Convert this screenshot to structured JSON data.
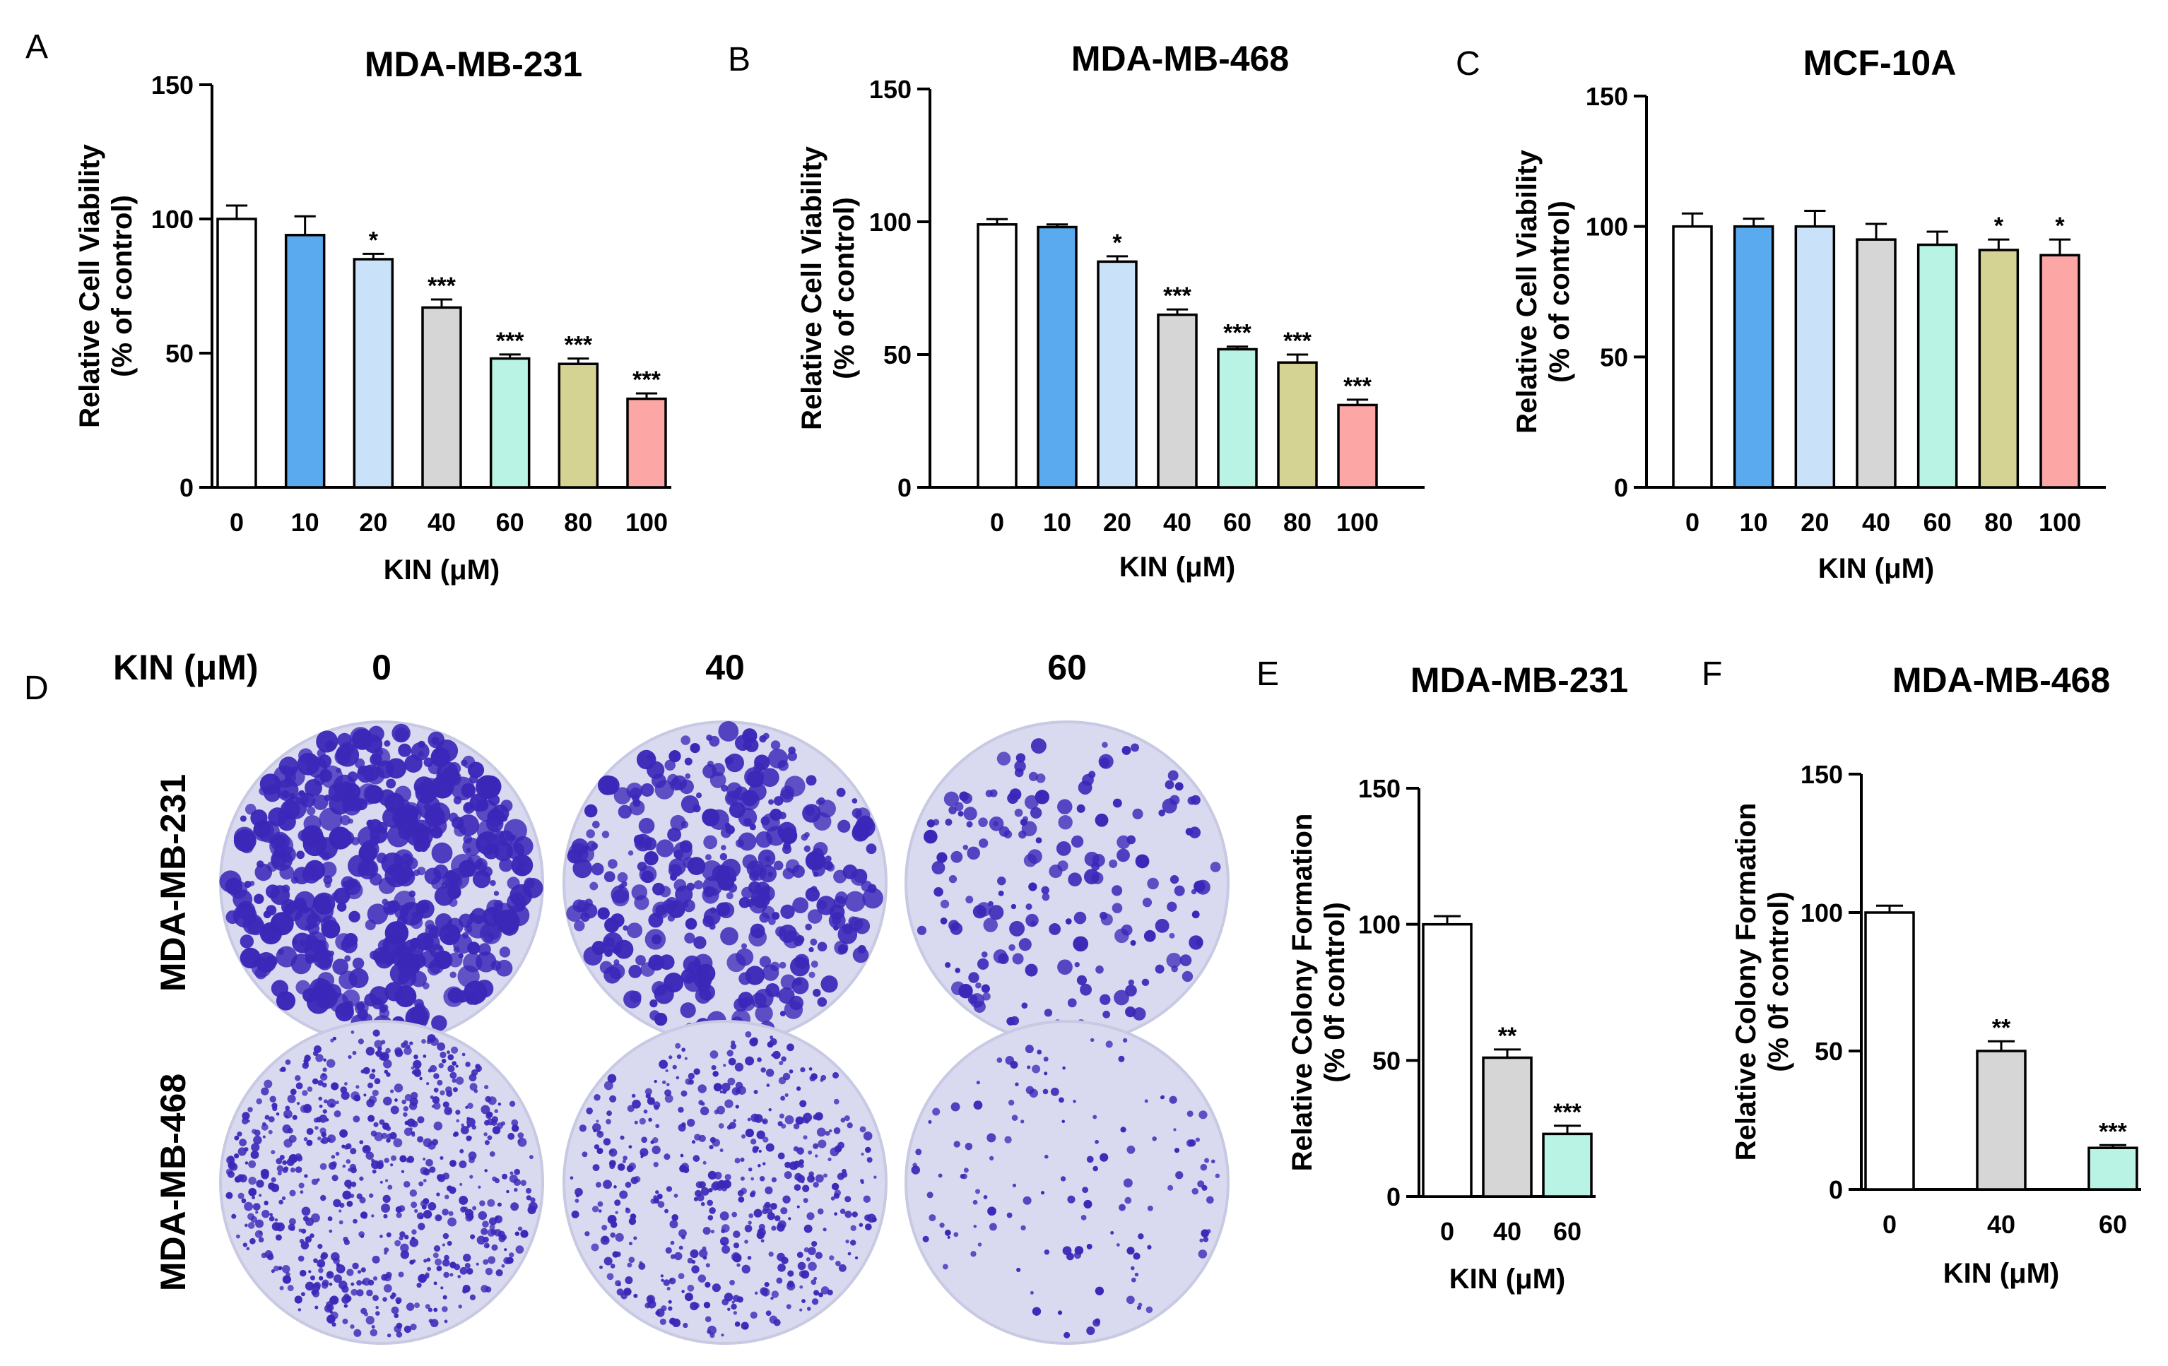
{
  "chart_data": [
    {
      "panel": "A",
      "type": "bar",
      "title": "MDA-MB-231",
      "xlabel": "KIN (μM)",
      "ylabel_lines": [
        "Relative Cell Viability",
        "(% of control)"
      ],
      "categories": [
        "0",
        "10",
        "20",
        "40",
        "60",
        "80",
        "100"
      ],
      "values": [
        100,
        94,
        85,
        67,
        48,
        46,
        33
      ],
      "errors": [
        5,
        7,
        2,
        3,
        1.5,
        2,
        2
      ],
      "significance": [
        "",
        "",
        "*",
        "***",
        "***",
        "***",
        "***"
      ],
      "colors": [
        "#ffffff",
        "#5aaaf0",
        "#c9e1f9",
        "#d6d6d6",
        "#b8f3e3",
        "#d5d393",
        "#fda6a6"
      ],
      "ylim": [
        0,
        150
      ],
      "yticks": [
        0,
        50,
        100,
        150
      ]
    },
    {
      "panel": "B",
      "type": "bar",
      "title": "MDA-MB-468",
      "xlabel": "KIN (μM)",
      "ylabel_lines": [
        "Relative Cell Viability",
        "(% of control)"
      ],
      "categories": [
        "0",
        "10",
        "20",
        "40",
        "60",
        "80",
        "100"
      ],
      "values": [
        99,
        98,
        85,
        65,
        52,
        47,
        31
      ],
      "errors": [
        2,
        1,
        2,
        2,
        1,
        3,
        2
      ],
      "significance": [
        "",
        "",
        "*",
        "***",
        "***",
        "***",
        "***"
      ],
      "colors": [
        "#ffffff",
        "#5aaaf0",
        "#c9e1f9",
        "#d6d6d6",
        "#b8f3e3",
        "#d5d393",
        "#fda6a6"
      ],
      "ylim": [
        0,
        150
      ],
      "yticks": [
        0,
        50,
        100,
        150
      ]
    },
    {
      "panel": "C",
      "type": "bar",
      "title": "MCF-10A",
      "xlabel": "KIN (μM)",
      "ylabel_lines": [
        "Relative Cell Viability",
        "(% of control)"
      ],
      "categories": [
        "0",
        "10",
        "20",
        "40",
        "60",
        "80",
        "100"
      ],
      "values": [
        100,
        100,
        100,
        95,
        93,
        91,
        89
      ],
      "errors": [
        5,
        3,
        6,
        6,
        5,
        4,
        6
      ],
      "significance": [
        "",
        "",
        "",
        "",
        "",
        "*",
        "*"
      ],
      "colors": [
        "#ffffff",
        "#5aaaf0",
        "#c9e1f9",
        "#d6d6d6",
        "#b8f3e3",
        "#d5d393",
        "#fda6a6"
      ],
      "ylim": [
        0,
        150
      ],
      "yticks": [
        0,
        50,
        100,
        150
      ]
    },
    {
      "panel": "E",
      "type": "bar",
      "title": "MDA-MB-231",
      "xlabel": "KIN (μM)",
      "ylabel_lines": [
        "Relative Colony Formation",
        "(% 0f control)"
      ],
      "categories": [
        "0",
        "40",
        "60"
      ],
      "values": [
        100,
        51,
        23
      ],
      "errors": [
        3,
        3,
        3
      ],
      "significance": [
        "",
        "**",
        "***"
      ],
      "colors": [
        "#ffffff",
        "#d6d6d6",
        "#b8f3e3"
      ],
      "ylim": [
        0,
        150
      ],
      "yticks": [
        0,
        50,
        100,
        150
      ]
    },
    {
      "panel": "F",
      "type": "bar",
      "title": "MDA-MB-468",
      "xlabel": "KIN (μM)",
      "ylabel_lines": [
        "Relative Colony Formation",
        "(% 0f control)"
      ],
      "categories": [
        "0",
        "40",
        "60"
      ],
      "values": [
        100,
        50,
        15
      ],
      "errors": [
        2.5,
        3.5,
        1
      ],
      "significance": [
        "",
        "**",
        "***"
      ],
      "colors": [
        "#ffffff",
        "#d6d6d6",
        "#b8f3e3"
      ],
      "ylim": [
        0,
        150
      ],
      "yticks": [
        0,
        50,
        100,
        150
      ]
    }
  ],
  "panel_d": {
    "letter": "D",
    "header": "KIN (μM)",
    "doses": [
      "0",
      "40",
      "60"
    ],
    "rows": [
      "MDA-MB-231",
      "MDA-MB-468"
    ],
    "colony_density": [
      [
        0.92,
        0.7,
        0.35
      ],
      [
        0.75,
        0.55,
        0.15
      ]
    ],
    "dish_color": "#d9daf0",
    "stain_color": "#3b27b8"
  }
}
